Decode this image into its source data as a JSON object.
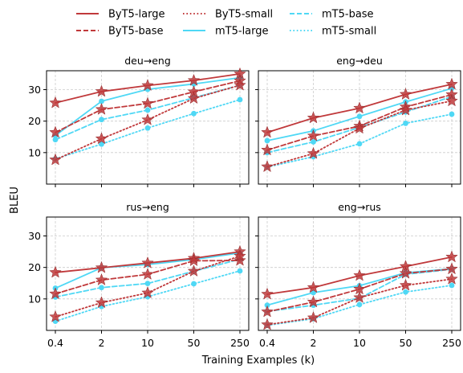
{
  "figure": {
    "ylabel": "BLEU",
    "xlabel": "Training Examples (k)"
  },
  "legend": {
    "placement": "top-center",
    "entries": [
      {
        "label": "ByT5-large",
        "color": "#c0393b",
        "dash": "solid"
      },
      {
        "label": "ByT5-base",
        "color": "#c0393b",
        "dash": "dashed"
      },
      {
        "label": "ByT5-small",
        "color": "#c0393b",
        "dash": "dotted"
      },
      {
        "label": "mT5-large",
        "color": "#4fd8f5",
        "dash": "solid"
      },
      {
        "label": "mT5-base",
        "color": "#4fd8f5",
        "dash": "dashed"
      },
      {
        "label": "mT5-small",
        "color": "#4fd8f5",
        "dash": "dotted"
      }
    ]
  },
  "colors": {
    "byt5": "#c0393b",
    "mt5": "#4fd8f5",
    "grid": "#cccccc"
  },
  "chart_data": [
    {
      "type": "line",
      "title": "deu→eng",
      "categories": [
        "0.4",
        "2",
        "10",
        "50",
        "250"
      ],
      "ylim": [
        0,
        36
      ],
      "yticks": [
        10,
        20,
        30
      ],
      "grid": true,
      "series": [
        {
          "name": "ByT5-large",
          "values": [
            25.8,
            29.4,
            31.3,
            32.9,
            35.0
          ]
        },
        {
          "name": "ByT5-base",
          "values": [
            16.4,
            23.7,
            25.6,
            29.3,
            32.8
          ]
        },
        {
          "name": "ByT5-small",
          "values": [
            7.7,
            14.4,
            20.4,
            27.2,
            31.4
          ]
        },
        {
          "name": "mT5-large",
          "values": [
            15.4,
            26.3,
            30.1,
            31.8,
            33.8
          ]
        },
        {
          "name": "mT5-base",
          "values": [
            14.1,
            20.5,
            23.5,
            27.4,
            31.4
          ]
        },
        {
          "name": "mT5-small",
          "values": [
            8.0,
            12.7,
            17.8,
            22.4,
            26.8
          ]
        }
      ]
    },
    {
      "type": "line",
      "title": "eng→deu",
      "categories": [
        "0.4",
        "2",
        "10",
        "50",
        "250"
      ],
      "ylim": [
        0,
        36
      ],
      "yticks": [
        10,
        20,
        30
      ],
      "grid": true,
      "series": [
        {
          "name": "ByT5-large",
          "values": [
            16.4,
            21.0,
            24.1,
            28.5,
            31.7
          ]
        },
        {
          "name": "ByT5-base",
          "values": [
            10.8,
            15.3,
            18.4,
            24.5,
            28.4
          ]
        },
        {
          "name": "ByT5-small",
          "values": [
            5.5,
            9.7,
            17.7,
            23.5,
            26.4
          ]
        },
        {
          "name": "mT5-large",
          "values": [
            13.8,
            16.9,
            21.5,
            26.1,
            30.4
          ]
        },
        {
          "name": "mT5-base",
          "values": [
            10.0,
            13.4,
            18.0,
            22.9,
            27.8
          ]
        },
        {
          "name": "mT5-small",
          "values": [
            5.4,
            8.7,
            12.8,
            19.3,
            22.2
          ]
        }
      ]
    },
    {
      "type": "line",
      "title": "rus→eng",
      "categories": [
        "0.4",
        "2",
        "10",
        "50",
        "250"
      ],
      "ylim": [
        0,
        36
      ],
      "yticks": [
        10,
        20,
        30
      ],
      "grid": true,
      "series": [
        {
          "name": "ByT5-large",
          "values": [
            18.4,
            19.9,
            21.4,
            22.9,
            25.0
          ]
        },
        {
          "name": "ByT5-base",
          "values": [
            11.6,
            16.0,
            17.8,
            22.1,
            22.2
          ]
        },
        {
          "name": "ByT5-small",
          "values": [
            4.3,
            8.8,
            11.9,
            18.8,
            23.6
          ]
        },
        {
          "name": "mT5-large",
          "values": [
            13.4,
            19.9,
            20.9,
            22.5,
            24.6
          ]
        },
        {
          "name": "mT5-base",
          "values": [
            10.6,
            13.6,
            14.9,
            18.8,
            22.6
          ]
        },
        {
          "name": "mT5-small",
          "values": [
            2.9,
            7.6,
            10.7,
            14.8,
            18.9
          ]
        }
      ]
    },
    {
      "type": "line",
      "title": "eng→rus",
      "categories": [
        "0.4",
        "2",
        "10",
        "50",
        "250"
      ],
      "ylim": [
        0,
        36
      ],
      "yticks": [
        10,
        20,
        30
      ],
      "grid": true,
      "series": [
        {
          "name": "ByT5-large",
          "values": [
            11.5,
            13.6,
            17.4,
            20.3,
            23.3
          ]
        },
        {
          "name": "ByT5-base",
          "values": [
            5.9,
            9.0,
            13.1,
            18.1,
            19.5
          ]
        },
        {
          "name": "ByT5-small",
          "values": [
            1.8,
            4.0,
            10.4,
            14.3,
            16.3
          ]
        },
        {
          "name": "mT5-large",
          "values": [
            8.0,
            12.0,
            14.2,
            18.3,
            19.6
          ]
        },
        {
          "name": "mT5-base",
          "values": [
            6.0,
            8.0,
            10.2,
            17.8,
            19.4
          ]
        },
        {
          "name": "mT5-small",
          "values": [
            1.6,
            3.7,
            8.2,
            12.2,
            14.3
          ]
        }
      ]
    }
  ]
}
